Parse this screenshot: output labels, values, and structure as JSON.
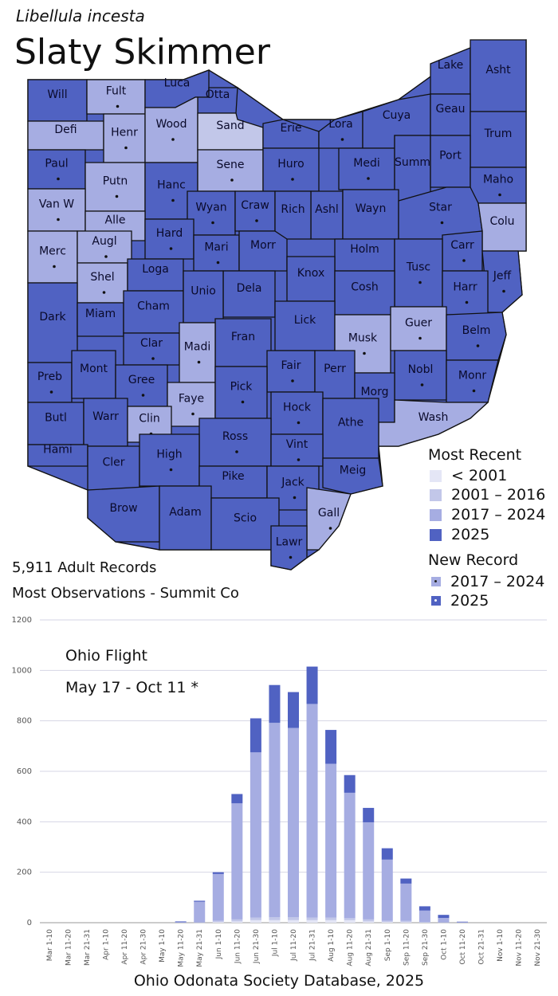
{
  "header": {
    "scientific_name": "Libellula incesta",
    "common_name": "Slaty Skimmer"
  },
  "colors": {
    "lt2001": "#e4e6f6",
    "r2001_2016": "#c2c7e9",
    "r2017_2024": "#a6ade2",
    "r2025": "#5062c2",
    "border": "#111111"
  },
  "counties": [
    {
      "name": "Will",
      "status": "2025",
      "dot": false
    },
    {
      "name": "Fult",
      "status": "2017-2024",
      "dot": true
    },
    {
      "name": "Luca",
      "status": "2025",
      "dot": false
    },
    {
      "name": "Otta",
      "status": "2025",
      "dot": false
    },
    {
      "name": "Lake",
      "status": "2025",
      "dot": false
    },
    {
      "name": "Asht",
      "status": "2025",
      "dot": false
    },
    {
      "name": "Defi",
      "status": "2017-2024",
      "dot": false
    },
    {
      "name": "Henr",
      "status": "2017-2024",
      "dot": true
    },
    {
      "name": "Wood",
      "status": "2017-2024",
      "dot": true
    },
    {
      "name": "Sand",
      "status": "2001-2016",
      "dot": false
    },
    {
      "name": "Erie",
      "status": "2025",
      "dot": false
    },
    {
      "name": "Lora",
      "status": "2025",
      "dot": true
    },
    {
      "name": "Cuya",
      "status": "2025",
      "dot": false
    },
    {
      "name": "Geau",
      "status": "2025",
      "dot": false
    },
    {
      "name": "Trum",
      "status": "2025",
      "dot": false
    },
    {
      "name": "Paul",
      "status": "2025",
      "dot": true
    },
    {
      "name": "Putn",
      "status": "2017-2024",
      "dot": true
    },
    {
      "name": "Hanc",
      "status": "2025",
      "dot": true
    },
    {
      "name": "Sene",
      "status": "2017-2024",
      "dot": true
    },
    {
      "name": "Huro",
      "status": "2025",
      "dot": true
    },
    {
      "name": "Medi",
      "status": "2025",
      "dot": true
    },
    {
      "name": "Summ",
      "status": "2025",
      "dot": false
    },
    {
      "name": "Port",
      "status": "2025",
      "dot": false
    },
    {
      "name": "Maho",
      "status": "2025",
      "dot": true
    },
    {
      "name": "Van W",
      "status": "2017-2024",
      "dot": true
    },
    {
      "name": "Alle",
      "status": "2017-2024",
      "dot": true
    },
    {
      "name": "Wyan",
      "status": "2025",
      "dot": true
    },
    {
      "name": "Craw",
      "status": "2025",
      "dot": true
    },
    {
      "name": "Ashl",
      "status": "2025",
      "dot": false
    },
    {
      "name": "Wayn",
      "status": "2025",
      "dot": false
    },
    {
      "name": "Star",
      "status": "2025",
      "dot": true
    },
    {
      "name": "Colu",
      "status": "2017-2024",
      "dot": false
    },
    {
      "name": "Merc",
      "status": "2017-2024",
      "dot": true
    },
    {
      "name": "Augl",
      "status": "2017-2024",
      "dot": true
    },
    {
      "name": "Hard",
      "status": "2025",
      "dot": true
    },
    {
      "name": "Mari",
      "status": "2025",
      "dot": true
    },
    {
      "name": "Morr",
      "status": "2025",
      "dot": false
    },
    {
      "name": "Rich",
      "status": "2025",
      "dot": false
    },
    {
      "name": "Holm",
      "status": "2025",
      "dot": false
    },
    {
      "name": "Carr",
      "status": "2025",
      "dot": true
    },
    {
      "name": "Shel",
      "status": "2017-2024",
      "dot": true
    },
    {
      "name": "Loga",
      "status": "2025",
      "dot": false
    },
    {
      "name": "Knox",
      "status": "2025",
      "dot": false
    },
    {
      "name": "Tusc",
      "status": "2025",
      "dot": true
    },
    {
      "name": "Jeff",
      "status": "2025",
      "dot": true
    },
    {
      "name": "Dark",
      "status": "2025",
      "dot": false
    },
    {
      "name": "Dela",
      "status": "2025",
      "dot": false
    },
    {
      "name": "Cosh",
      "status": "2025",
      "dot": false
    },
    {
      "name": "Harr",
      "status": "2025",
      "dot": true
    },
    {
      "name": "Miam",
      "status": "2025",
      "dot": false
    },
    {
      "name": "Cham",
      "status": "2025",
      "dot": false
    },
    {
      "name": "Unio",
      "status": "2025",
      "dot": false
    },
    {
      "name": "Lick",
      "status": "2025",
      "dot": false
    },
    {
      "name": "Musk",
      "status": "2017-2024",
      "dot": true
    },
    {
      "name": "Guer",
      "status": "2017-2024",
      "dot": true
    },
    {
      "name": "Belm",
      "status": "2025",
      "dot": true
    },
    {
      "name": "Clar",
      "status": "2025",
      "dot": true
    },
    {
      "name": "Fran",
      "status": "2025",
      "dot": false
    },
    {
      "name": "Madi",
      "status": "2017-2024",
      "dot": true
    },
    {
      "name": "Fair",
      "status": "2025",
      "dot": true
    },
    {
      "name": "Perr",
      "status": "2025",
      "dot": false
    },
    {
      "name": "Nobl",
      "status": "2025",
      "dot": true
    },
    {
      "name": "Monr",
      "status": "2025",
      "dot": true
    },
    {
      "name": "Preb",
      "status": "2025",
      "dot": true
    },
    {
      "name": "Mont",
      "status": "2025",
      "dot": false
    },
    {
      "name": "Gree",
      "status": "2025",
      "dot": true
    },
    {
      "name": "Faye",
      "status": "2017-2024",
      "dot": true
    },
    {
      "name": "Pick",
      "status": "2025",
      "dot": true
    },
    {
      "name": "Morg",
      "status": "2025",
      "dot": true
    },
    {
      "name": "Wash",
      "status": "2017-2024",
      "dot": false
    },
    {
      "name": "Butl",
      "status": "2025",
      "dot": false
    },
    {
      "name": "Warr",
      "status": "2025",
      "dot": false
    },
    {
      "name": "Clin",
      "status": "2017-2024",
      "dot": true
    },
    {
      "name": "Hock",
      "status": "2025",
      "dot": true
    },
    {
      "name": "Athe",
      "status": "2025",
      "dot": false
    },
    {
      "name": "Ross",
      "status": "2025",
      "dot": true
    },
    {
      "name": "Vint",
      "status": "2025",
      "dot": true
    },
    {
      "name": "Hami",
      "status": "2025",
      "dot": false
    },
    {
      "name": "Cler",
      "status": "2025",
      "dot": false
    },
    {
      "name": "High",
      "status": "2025",
      "dot": true
    },
    {
      "name": "Meig",
      "status": "2025",
      "dot": false
    },
    {
      "name": "Pike",
      "status": "2025",
      "dot": false
    },
    {
      "name": "Jack",
      "status": "2025",
      "dot": true
    },
    {
      "name": "Brow",
      "status": "2025",
      "dot": false
    },
    {
      "name": "Adam",
      "status": "2025",
      "dot": false
    },
    {
      "name": "Scio",
      "status": "2025",
      "dot": false
    },
    {
      "name": "Gall",
      "status": "2017-2024",
      "dot": true
    },
    {
      "name": "Lawr",
      "status": "2025",
      "dot": true
    }
  ],
  "legend": {
    "recent_title": "Most Recent",
    "recent_items": [
      "< 2001",
      "2001 – 2016",
      "2017 – 2024",
      "2025"
    ],
    "new_title": "New Record",
    "new_items": [
      "2017 – 2024",
      "2025"
    ]
  },
  "stats": {
    "records": "5,911  Adult Records",
    "most": "Most Observations - Summit Co"
  },
  "chart_title": "Ohio Flight",
  "chart_range": "May 17 - Oct 11 *",
  "source": "Ohio Odonata Society Database, 2025",
  "chart_data": {
    "type": "bar",
    "stacked": true,
    "categories": [
      "Mar 1-10",
      "Mar 11-20",
      "Mar 21-31",
      "Apr 1-10",
      "Apr 11-20",
      "Apr 21-30",
      "May 1-10",
      "May 11-20",
      "May 21-31",
      "Jun 1-10",
      "Jun 11-20",
      "Jun 21-30",
      "Jul 1-10",
      "Jul 11-20",
      "Jul 21-31",
      "Aug 1-10",
      "Aug 11-20",
      "Aug 21-31",
      "Sep 1-10",
      "Sep 11-20",
      "Sep 21-30",
      "Oct 1-10",
      "Oct 11-20",
      "Oct 21-31",
      "Nov 1-10",
      "Nov 11-20",
      "Nov 21-30"
    ],
    "series": [
      {
        "color": "#e4e6f6",
        "values": [
          0,
          0,
          0,
          0,
          0,
          0,
          0,
          0,
          0,
          3,
          5,
          10,
          10,
          10,
          10,
          10,
          10,
          5,
          3,
          2,
          0,
          0,
          0,
          0,
          0,
          0,
          0
        ]
      },
      {
        "color": "#c2c7e9",
        "values": [
          0,
          0,
          0,
          0,
          0,
          0,
          0,
          0,
          1,
          5,
          8,
          10,
          12,
          12,
          10,
          10,
          8,
          8,
          5,
          5,
          3,
          1,
          0,
          0,
          0,
          0,
          0
        ]
      },
      {
        "color": "#a6ade2",
        "values": [
          0,
          0,
          0,
          0,
          0,
          0,
          0,
          2,
          82,
          185,
          460,
          655,
          770,
          750,
          847,
          610,
          497,
          385,
          242,
          148,
          45,
          18,
          2,
          0,
          0,
          0,
          0
        ]
      },
      {
        "color": "#5062c2",
        "values": [
          0,
          0,
          0,
          0,
          0,
          0,
          0,
          3,
          4,
          7,
          37,
          135,
          150,
          142,
          148,
          134,
          70,
          57,
          45,
          20,
          17,
          12,
          2,
          0,
          0,
          0,
          0
        ]
      }
    ],
    "ylim": [
      0,
      1200
    ],
    "yticks": [
      0,
      200,
      400,
      600,
      800,
      1000,
      1200
    ],
    "grid": true
  }
}
